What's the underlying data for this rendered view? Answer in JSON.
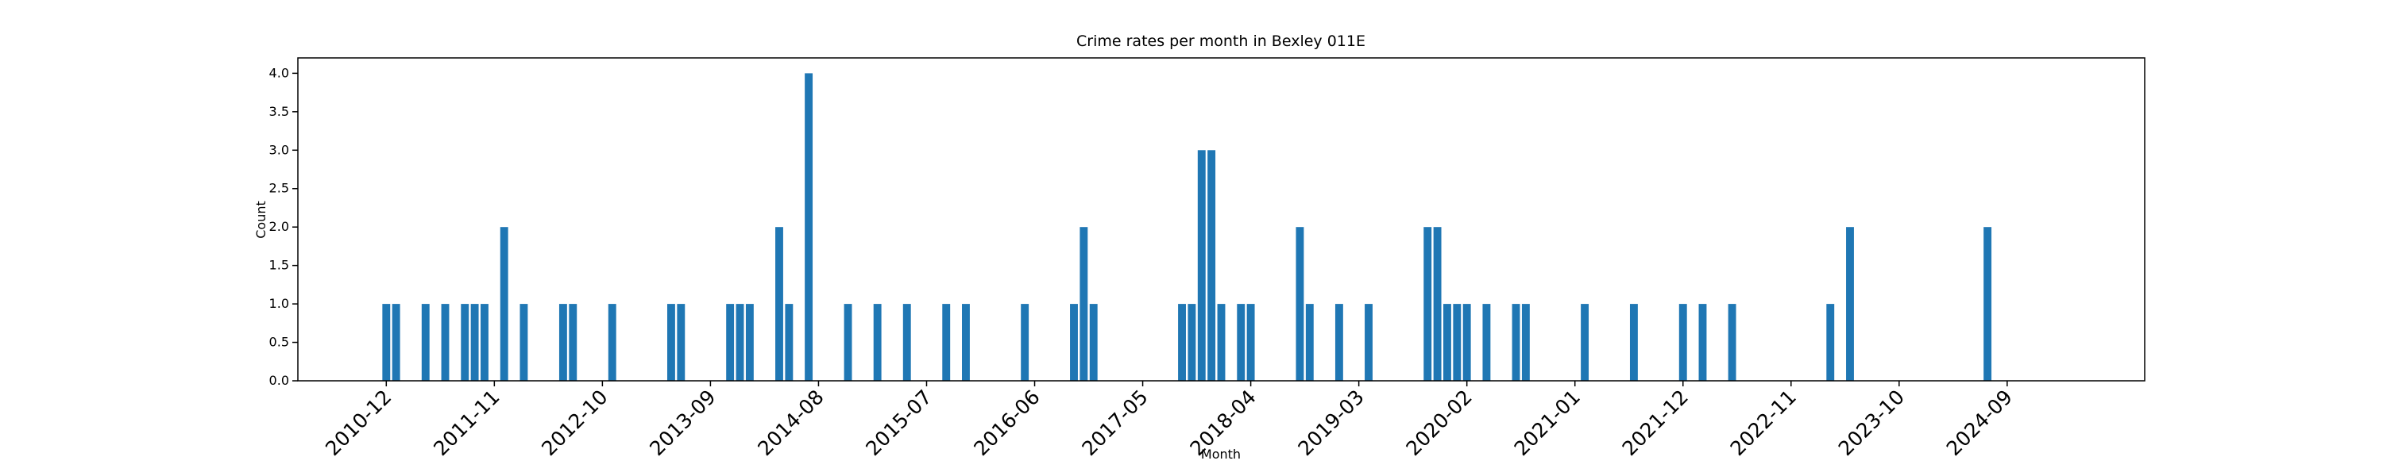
{
  "chart_data": {
    "type": "bar",
    "title": "Crime rates per month in Bexley 011E",
    "x_label": "Month",
    "y_label": "Count",
    "color": "#1f77b4",
    "x": [
      "2010-12",
      "2011-01",
      "2011-04",
      "2011-06",
      "2011-08",
      "2011-09",
      "2011-10",
      "2011-12",
      "2012-02",
      "2012-06",
      "2012-07",
      "2012-11",
      "2013-05",
      "2013-06",
      "2013-11",
      "2013-12",
      "2014-01",
      "2014-04",
      "2014-05",
      "2014-07",
      "2014-11",
      "2015-02",
      "2015-05",
      "2015-09",
      "2015-11",
      "2016-05",
      "2016-10",
      "2016-11",
      "2016-12",
      "2017-09",
      "2017-10",
      "2017-11",
      "2017-12",
      "2018-01",
      "2018-03",
      "2018-04",
      "2018-09",
      "2018-10",
      "2019-01",
      "2019-04",
      "2019-10",
      "2019-11",
      "2019-12",
      "2020-01",
      "2020-02",
      "2020-04",
      "2020-07",
      "2020-08",
      "2021-02",
      "2021-07",
      "2021-12",
      "2022-02",
      "2022-05",
      "2023-03",
      "2023-05",
      "2024-07"
    ],
    "values": [
      1,
      1,
      1,
      1,
      1,
      1,
      1,
      2,
      1,
      1,
      1,
      1,
      1,
      1,
      1,
      1,
      1,
      2,
      1,
      4,
      1,
      1,
      1,
      1,
      1,
      1,
      1,
      2,
      1,
      1,
      1,
      3,
      3,
      1,
      1,
      1,
      2,
      1,
      1,
      1,
      2,
      2,
      1,
      1,
      1,
      1,
      1,
      1,
      1,
      1,
      1,
      1,
      1,
      1,
      2,
      2
    ],
    "xlim": [
      "2010-03",
      "2025-11"
    ],
    "xticks": [
      "2010-12",
      "2011-11",
      "2012-10",
      "2013-09",
      "2014-08",
      "2015-07",
      "2016-06",
      "2017-05",
      "2018-04",
      "2019-03",
      "2020-02",
      "2021-01",
      "2021-12",
      "2022-11",
      "2023-10",
      "2024-09"
    ],
    "ylim": [
      0,
      4.2
    ],
    "yticks": [
      {
        "value": 0,
        "label": "0.0"
      },
      {
        "value": 0.5,
        "label": "0.5"
      },
      {
        "value": 1,
        "label": "1.0"
      },
      {
        "value": 1.5,
        "label": "1.5"
      },
      {
        "value": 2,
        "label": "2.0"
      },
      {
        "value": 2.5,
        "label": "2.5"
      },
      {
        "value": 3,
        "label": "3.0"
      },
      {
        "value": 3.5,
        "label": "3.5"
      },
      {
        "value": 4,
        "label": "4.0"
      }
    ],
    "grid": false
  }
}
